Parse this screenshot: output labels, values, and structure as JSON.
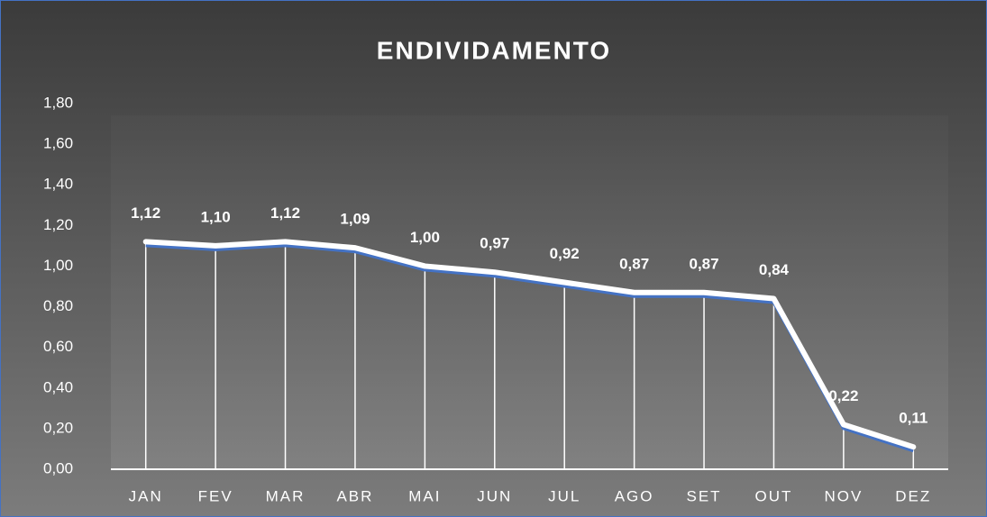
{
  "chart_data": {
    "type": "line",
    "title": "ENDIVIDAMENTO",
    "categories": [
      "JAN",
      "FEV",
      "MAR",
      "ABR",
      "MAI",
      "JUN",
      "JUL",
      "AGO",
      "SET",
      "OUT",
      "NOV",
      "DEZ"
    ],
    "values": [
      1.12,
      1.1,
      1.12,
      1.09,
      1.0,
      0.97,
      0.92,
      0.87,
      0.87,
      0.84,
      0.22,
      0.11
    ],
    "value_labels": [
      "1,12",
      "1,10",
      "1,12",
      "1,09",
      "1,00",
      "0,97",
      "0,92",
      "0,87",
      "0,87",
      "0,84",
      "0,22",
      "0,11"
    ],
    "color": "#ffffff",
    "ylim": [
      0,
      1.8
    ],
    "yticks": [
      {
        "value": 0,
        "label": "0,00"
      },
      {
        "value": 0.2,
        "label": "0,20"
      },
      {
        "value": 0.4,
        "label": "0,40"
      },
      {
        "value": 0.6,
        "label": "0,60"
      },
      {
        "value": 0.8,
        "label": "0,80"
      },
      {
        "value": 1.0,
        "label": "1,00"
      },
      {
        "value": 1.2,
        "label": "1,20"
      },
      {
        "value": 1.4,
        "label": "1,40"
      },
      {
        "value": 1.6,
        "label": "1,60"
      },
      {
        "value": 1.8,
        "label": "1,80"
      }
    ],
    "drop_lines": true
  }
}
